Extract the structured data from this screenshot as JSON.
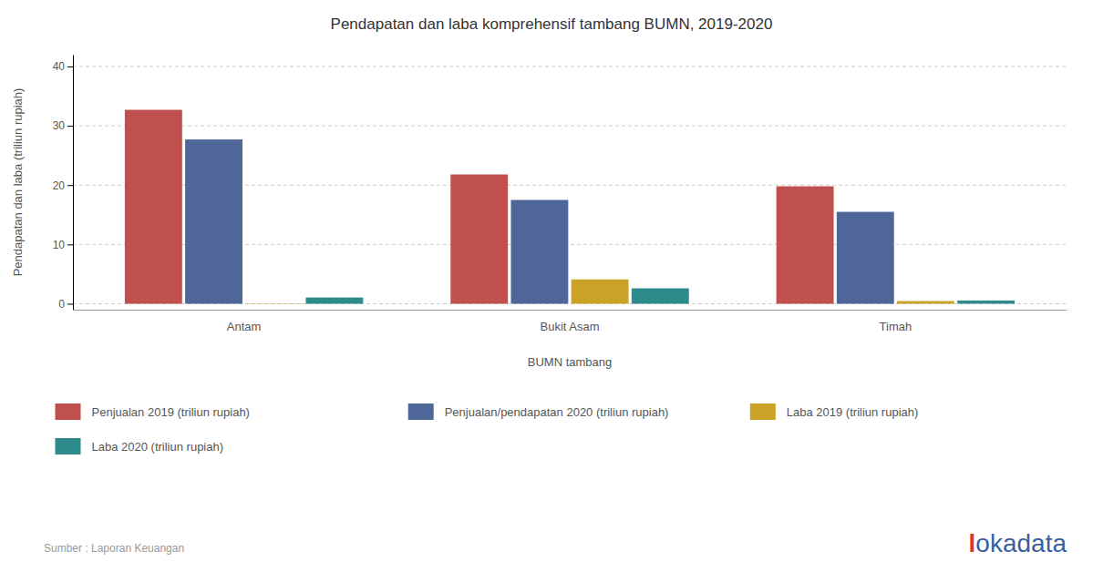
{
  "chart_data": {
    "type": "bar",
    "title": "Pendapatan dan laba komprehensif tambang BUMN, 2019-2020",
    "xlabel": "BUMN tambang",
    "ylabel": "Pendapatan dan laba (triliun rupiah)",
    "categories": [
      "Antam",
      "Bukit Asam",
      "Timah"
    ],
    "series": [
      {
        "name": "Penjualan 2019 (triliun rupiah)",
        "color": "#c0504d",
        "values": [
          32.7,
          21.8,
          19.8
        ]
      },
      {
        "name": "Penjualan/pendapatan 2020 (triliun rupiah)",
        "color": "#4f6699",
        "values": [
          27.7,
          17.5,
          15.5
        ]
      },
      {
        "name": "Laba 2019 (triliun rupiah)",
        "color": "#c9a227",
        "values": [
          0.05,
          4.1,
          0.45
        ]
      },
      {
        "name": "Laba 2020 (triliun rupiah)",
        "color": "#2e8b8b",
        "values": [
          1.05,
          2.6,
          0.55
        ]
      }
    ],
    "ylim": [
      -1,
      42
    ],
    "yticks": [
      0,
      10,
      20,
      30,
      40
    ],
    "grid": true,
    "annotations": [
      {
        "text": "Sumber : Laporan Keuangan"
      },
      {
        "text": "l",
        "color": "#e8312a"
      },
      {
        "text": "okadata",
        "color": "#3a5fa0"
      }
    ]
  }
}
